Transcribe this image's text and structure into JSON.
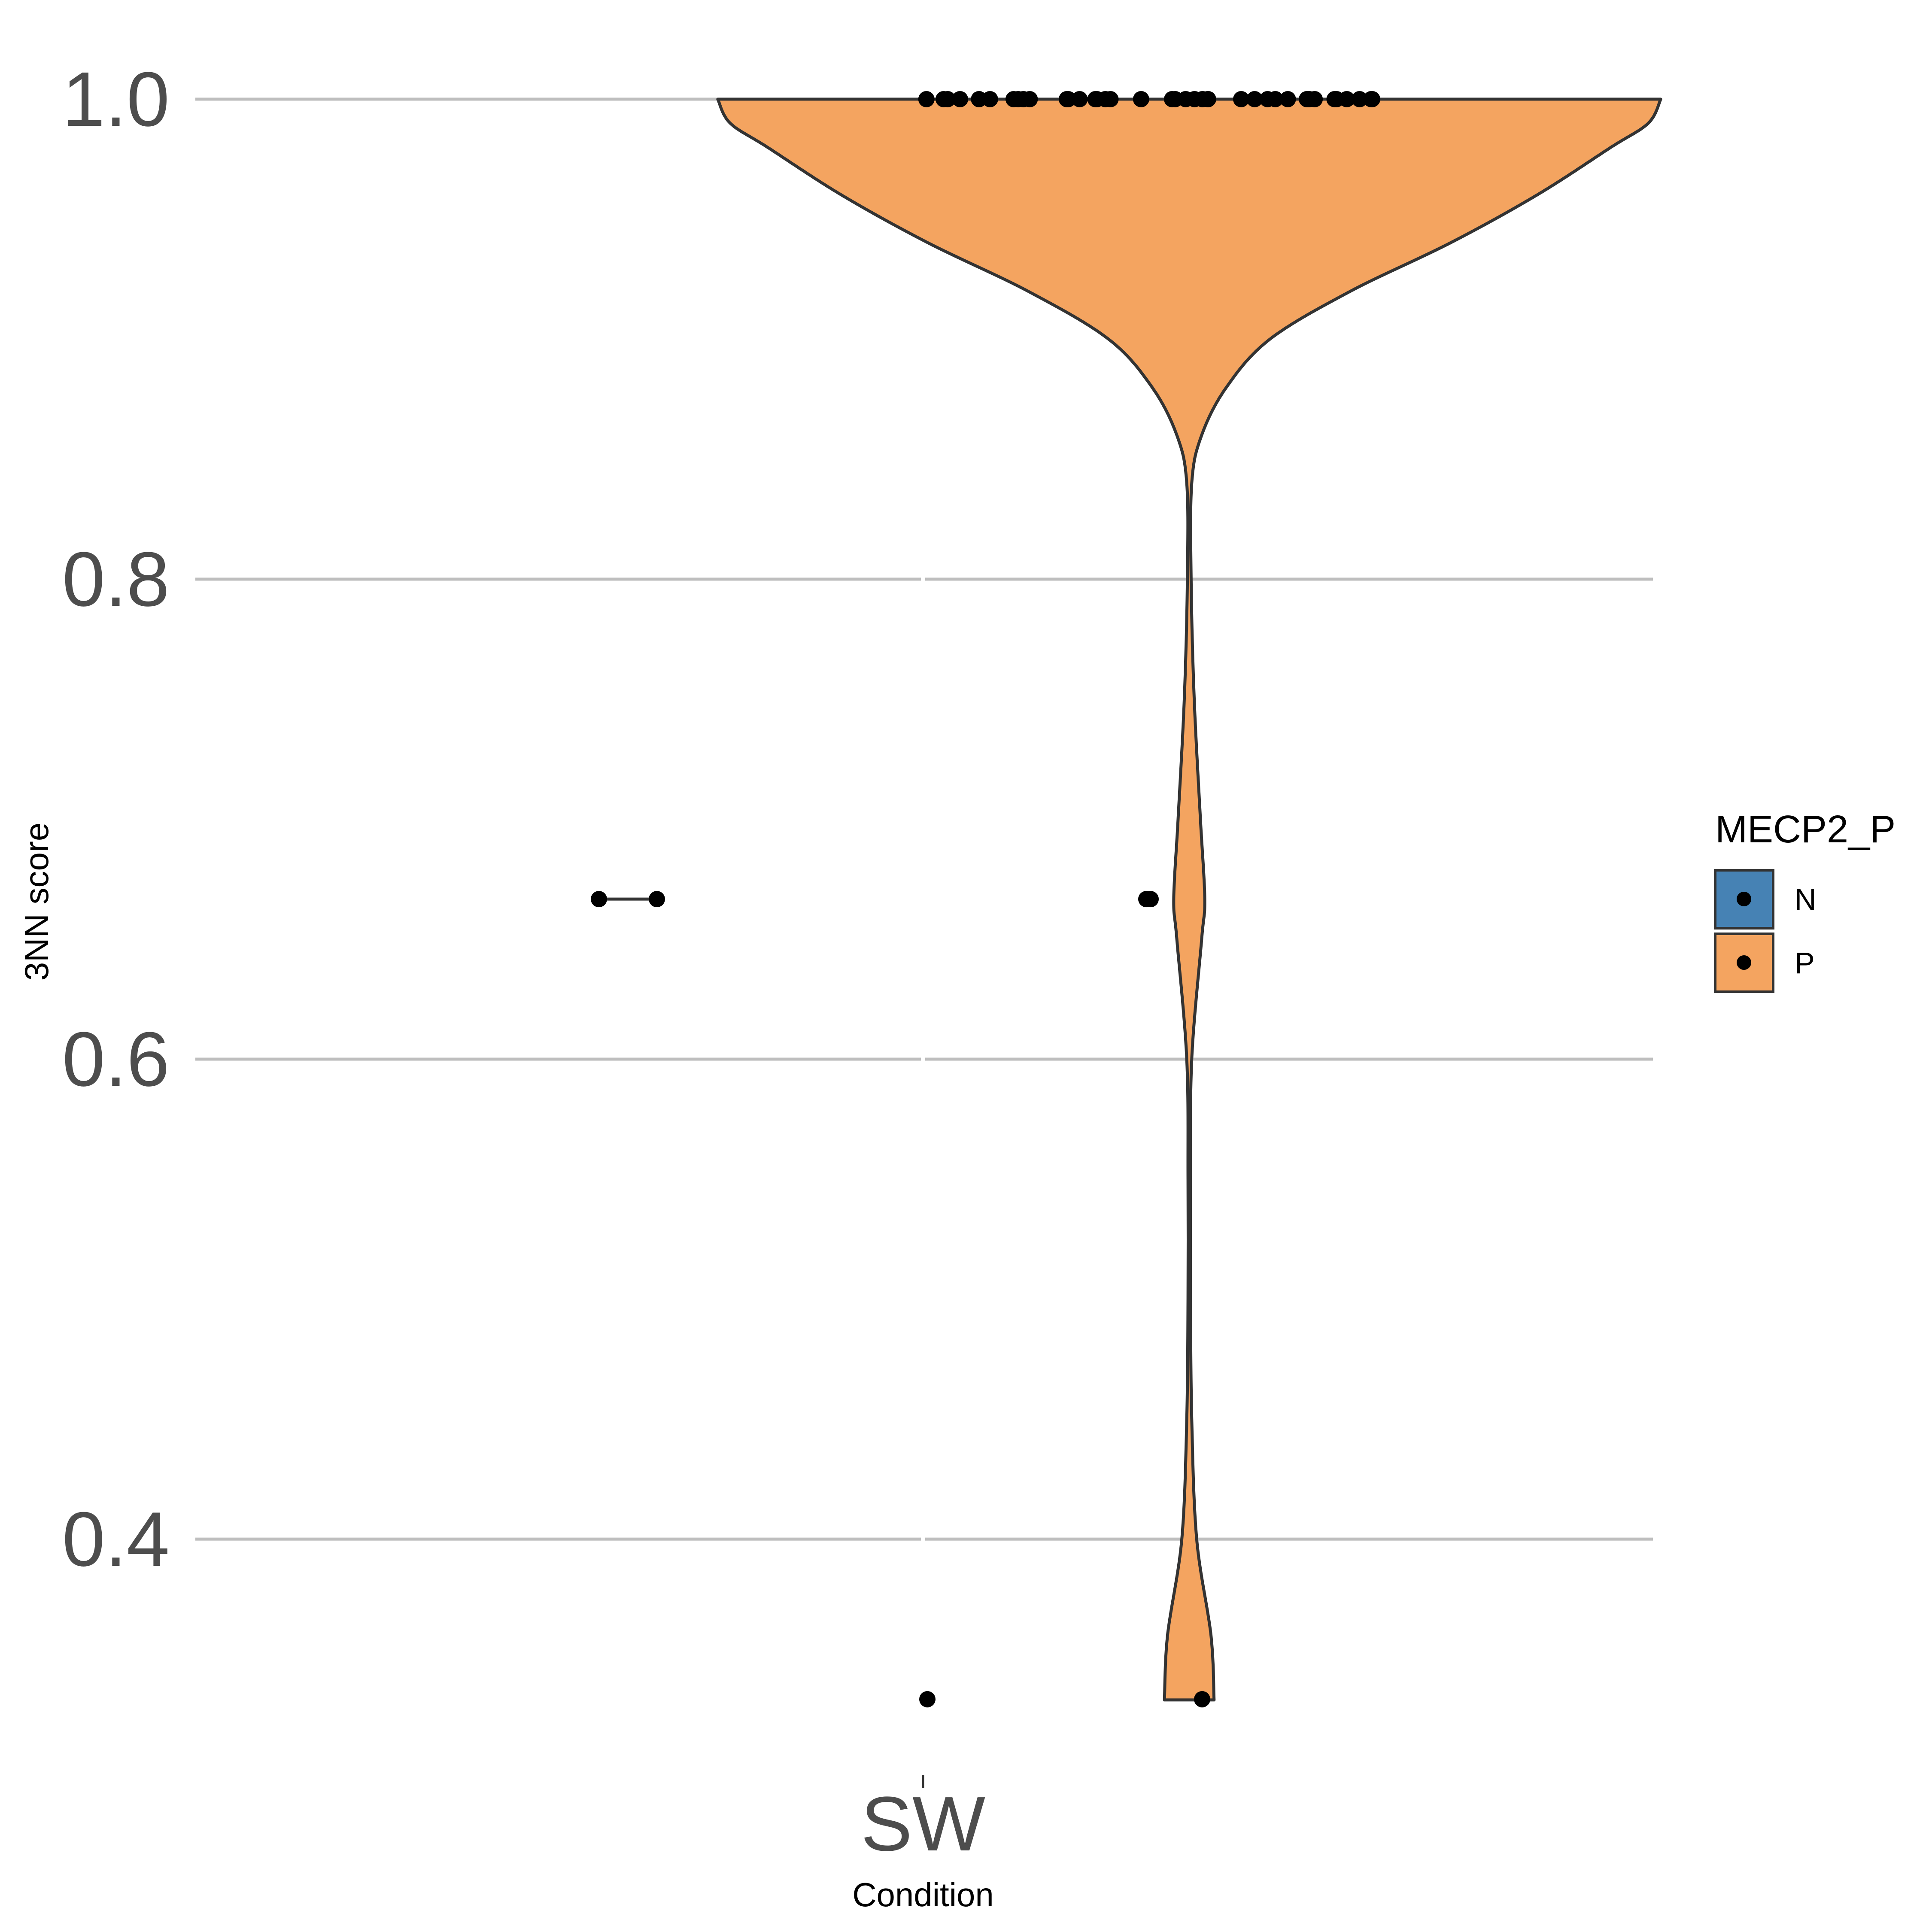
{
  "chart_data": {
    "type": "violin",
    "title": "",
    "xlabel": "Condition",
    "ylabel": "3NN score",
    "categories": [
      "SW"
    ],
    "ylim": [
      0.33,
      1.0
    ],
    "yticks": [
      0.4,
      0.6,
      0.8,
      1.0
    ],
    "ytick_labels": [
      "0.4",
      "0.6",
      "0.8",
      "1.0"
    ],
    "grid": true,
    "legend": {
      "title": "MECP2_P",
      "position": "right",
      "entries": [
        {
          "label": "N",
          "color": "#4682b4"
        },
        {
          "label": "P",
          "color": "#f4a460"
        }
      ]
    },
    "series": [
      {
        "name": "N",
        "color": "#4682b4",
        "violin": {
          "ymin": 0.6667,
          "ymax": 0.6667,
          "max_halfwidth": 0.0
        },
        "points": [
          0.6667,
          0.6667
        ]
      },
      {
        "name": "P",
        "color": "#f4a460",
        "violin": {
          "profile": [
            [
              0.333,
              0.04
            ],
            [
              0.36,
              0.035
            ],
            [
              0.4,
              0.012
            ],
            [
              0.45,
              0.004
            ],
            [
              0.5,
              0.002
            ],
            [
              0.55,
              0.002
            ],
            [
              0.6,
              0.004
            ],
            [
              0.65,
              0.02
            ],
            [
              0.667,
              0.025
            ],
            [
              0.7,
              0.018
            ],
            [
              0.75,
              0.008
            ],
            [
              0.8,
              0.003
            ],
            [
              0.84,
              0.004
            ],
            [
              0.86,
              0.02
            ],
            [
              0.88,
              0.06
            ],
            [
              0.9,
              0.13
            ],
            [
              0.92,
              0.26
            ],
            [
              0.94,
              0.42
            ],
            [
              0.96,
              0.56
            ],
            [
              0.98,
              0.68
            ],
            [
              0.99,
              0.74
            ],
            [
              1.0,
              0.76
            ]
          ]
        },
        "points": [
          0.3333,
          0.3333,
          0.6667,
          0.6667,
          1.0,
          1.0,
          1.0,
          1.0,
          1.0,
          1.0,
          1.0,
          1.0,
          1.0,
          1.0,
          1.0,
          1.0,
          1.0,
          1.0,
          1.0,
          1.0,
          1.0,
          1.0,
          1.0,
          1.0,
          1.0,
          1.0,
          1.0,
          1.0,
          1.0,
          1.0,
          1.0,
          1.0,
          1.0,
          1.0,
          1.0,
          1.0,
          1.0,
          1.0,
          1.0,
          1.0,
          1.0,
          1.0,
          1.0,
          1.0
        ]
      }
    ]
  }
}
